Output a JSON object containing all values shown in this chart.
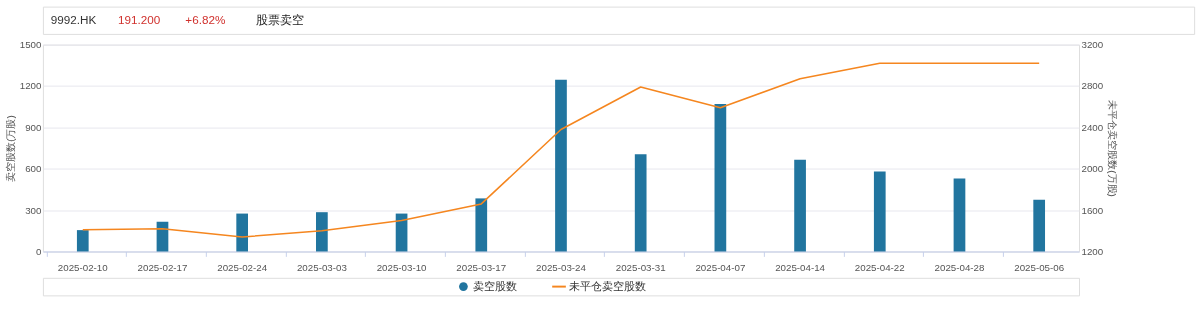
{
  "chart_data": {
    "type": "bar",
    "title": "股票卖空",
    "annotations": [
      "9992.HK",
      "191.200",
      "+6.82%"
    ],
    "categories": [
      "2025-02-10",
      "2025-02-17",
      "2025-02-24",
      "2025-03-03",
      "2025-03-10",
      "2025-03-17",
      "2025-03-24",
      "2025-03-31",
      "2025-04-07",
      "2025-04-14",
      "2025-04-22",
      "2025-04-28",
      "2025-05-06"
    ],
    "series": [
      {
        "name": "卖空股数",
        "axis": "y",
        "color": "#21759f",
        "values": [
          155,
          215,
          275,
          285,
          275,
          385,
          1245,
          705,
          1070,
          665,
          580,
          530,
          375
        ]
      },
      {
        "name": "未平仓卖空股数",
        "type": "line",
        "axis": "y2",
        "color": "#f5861f",
        "values": [
          1410,
          1420,
          1340,
          1400,
          1500,
          1660,
          2380,
          2790,
          2590,
          2870,
          3020,
          3020,
          3020
        ]
      }
    ],
    "ylabel": "卖空股数(万股)",
    "y2label": "未平仓卖空股数(万股)",
    "ylim": [
      0,
      1500
    ],
    "yticks": [
      0,
      300,
      600,
      900,
      1200,
      1500
    ],
    "y2lim": [
      1200,
      3200
    ],
    "y2ticks": [
      1200,
      1600,
      2000,
      2400,
      2800,
      3200
    ],
    "grid": "y",
    "legend": "bottom",
    "marker": "none",
    "line_style": "solid"
  }
}
